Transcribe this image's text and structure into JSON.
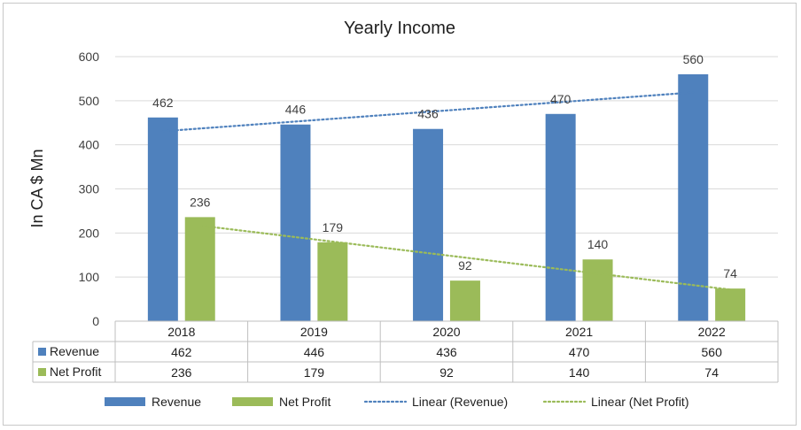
{
  "chart_data": {
    "type": "bar",
    "title": "Yearly Income",
    "ylabel": "In CA $ Mn",
    "xlabel": "",
    "ylim": [
      0,
      600
    ],
    "yticks": [
      0,
      100,
      200,
      300,
      400,
      500,
      600
    ],
    "categories": [
      "2018",
      "2019",
      "2020",
      "2021",
      "2022"
    ],
    "series": [
      {
        "name": "Revenue",
        "values": [
          462,
          446,
          436,
          470,
          560
        ],
        "color": "#4f81bd"
      },
      {
        "name": "Net Profit",
        "values": [
          236,
          179,
          92,
          140,
          74
        ],
        "color": "#9bbb59"
      }
    ],
    "trendlines": [
      {
        "name": "Linear (Revenue)",
        "series": "Revenue",
        "style": "dotted",
        "color": "#4f81bd"
      },
      {
        "name": "Linear (Net Profit)",
        "series": "Net Profit",
        "style": "dotted",
        "color": "#9bbb59"
      }
    ],
    "data_table": true,
    "grid": true,
    "legend_position": "bottom"
  }
}
